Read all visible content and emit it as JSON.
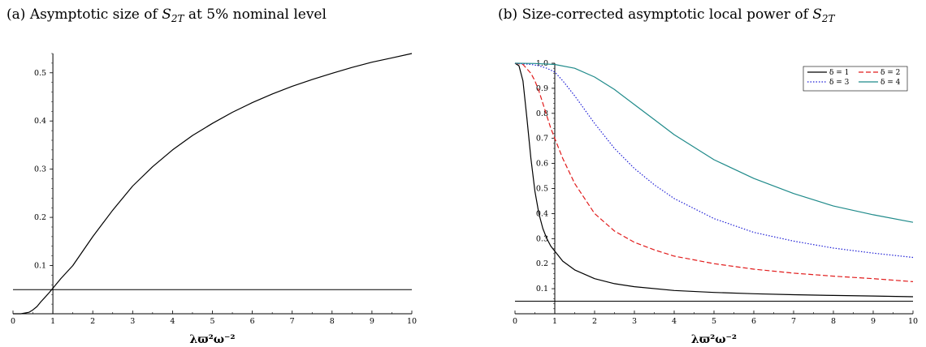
{
  "chart_data": [
    {
      "type": "line",
      "panel_label": "(a)",
      "title_text": "Asymptotic size of",
      "title_symbol": "S",
      "title_subscript": "2T",
      "title_suffix": "at 5% nominal level",
      "xlabel": "λϖ²ω⁻²",
      "ylabel": "",
      "xlim": [
        0,
        10
      ],
      "ylim": [
        0,
        0.54
      ],
      "xticks": [
        0,
        1,
        2,
        3,
        4,
        5,
        6,
        7,
        8,
        9,
        10
      ],
      "yticks": [
        0.1,
        0.2,
        0.3,
        0.4,
        0.5
      ],
      "grid": false,
      "reference_lines": {
        "horizontal_y": 0.05,
        "vertical_x": 1
      },
      "series": [
        {
          "color": "#000000",
          "dash": "solid",
          "x": [
            0,
            0.2,
            0.4,
            0.5,
            0.6,
            0.7,
            0.8,
            0.9,
            1.0,
            1.2,
            1.5,
            2,
            2.5,
            3,
            3.5,
            4,
            4.5,
            5,
            5.5,
            6,
            6.5,
            7,
            7.5,
            8,
            8.5,
            9,
            9.5,
            10
          ],
          "y": [
            0.0,
            0.0,
            0.003,
            0.008,
            0.015,
            0.025,
            0.034,
            0.043,
            0.053,
            0.073,
            0.1,
            0.16,
            0.215,
            0.265,
            0.305,
            0.34,
            0.37,
            0.395,
            0.418,
            0.438,
            0.456,
            0.472,
            0.486,
            0.499,
            0.511,
            0.522,
            0.531,
            0.54
          ]
        }
      ]
    },
    {
      "type": "line",
      "panel_label": "(b)",
      "title_text": "Size-corrected asymptotic local power of",
      "title_symbol": "S",
      "title_subscript": "2T",
      "xlabel": "λϖ²ω⁻²",
      "ylabel": "",
      "xlim": [
        0,
        10
      ],
      "ylim": [
        0,
        1.0
      ],
      "xticks": [
        0,
        1,
        2,
        3,
        4,
        5,
        6,
        7,
        8,
        9,
        10
      ],
      "yticks": [
        0.1,
        0.2,
        0.3,
        0.4,
        0.5,
        0.6,
        0.7,
        0.8,
        0.9,
        1.0
      ],
      "ytick_labels": [
        "0.1",
        "0.2",
        "0.3",
        "0.4",
        "0.5",
        "0.6",
        "0.7",
        "0.8",
        "0.9",
        "1.0"
      ],
      "grid": false,
      "legend_position": "top-right",
      "reference_lines": {
        "horizontal_y": 0.05,
        "vertical_x": 1
      },
      "series": [
        {
          "name": "δ = 1",
          "color": "#000000",
          "dash": "solid",
          "x": [
            0,
            0.1,
            0.2,
            0.3,
            0.4,
            0.5,
            0.6,
            0.7,
            0.8,
            0.9,
            1.0,
            1.2,
            1.5,
            2,
            2.5,
            3,
            4,
            5,
            6,
            7,
            8,
            9,
            10
          ],
          "y": [
            1.0,
            0.99,
            0.93,
            0.78,
            0.62,
            0.49,
            0.4,
            0.34,
            0.3,
            0.27,
            0.25,
            0.21,
            0.175,
            0.14,
            0.12,
            0.108,
            0.093,
            0.085,
            0.08,
            0.076,
            0.073,
            0.071,
            0.068
          ]
        },
        {
          "name": "δ = 2",
          "color": "#e11b1b",
          "dash": "dashed",
          "x": [
            0,
            0.2,
            0.4,
            0.5,
            0.6,
            0.7,
            0.8,
            0.9,
            1.0,
            1.2,
            1.5,
            2,
            2.5,
            3,
            3.5,
            4,
            5,
            6,
            7,
            8,
            9,
            10
          ],
          "y": [
            1.0,
            0.995,
            0.96,
            0.93,
            0.89,
            0.84,
            0.79,
            0.74,
            0.7,
            0.62,
            0.52,
            0.4,
            0.33,
            0.285,
            0.255,
            0.23,
            0.2,
            0.178,
            0.162,
            0.15,
            0.14,
            0.128
          ]
        },
        {
          "name": "δ = 3",
          "color": "#1f1fd6",
          "dash": "dotted",
          "x": [
            0,
            0.4,
            0.6,
            0.8,
            1.0,
            1.2,
            1.5,
            2,
            2.5,
            3,
            3.5,
            4,
            5,
            6,
            7,
            8,
            9,
            10
          ],
          "y": [
            1.0,
            0.995,
            0.99,
            0.98,
            0.965,
            0.93,
            0.87,
            0.76,
            0.66,
            0.58,
            0.515,
            0.46,
            0.38,
            0.325,
            0.29,
            0.262,
            0.242,
            0.225
          ]
        },
        {
          "name": "δ = 4",
          "color": "#1f8a8a",
          "dash": "solid",
          "x": [
            0,
            0.5,
            1.0,
            1.5,
            2,
            2.5,
            3,
            3.5,
            4,
            5,
            6,
            7,
            8,
            9,
            10
          ],
          "y": [
            1.0,
            0.999,
            0.995,
            0.98,
            0.945,
            0.895,
            0.835,
            0.775,
            0.715,
            0.615,
            0.54,
            0.48,
            0.43,
            0.395,
            0.365
          ]
        }
      ]
    }
  ]
}
